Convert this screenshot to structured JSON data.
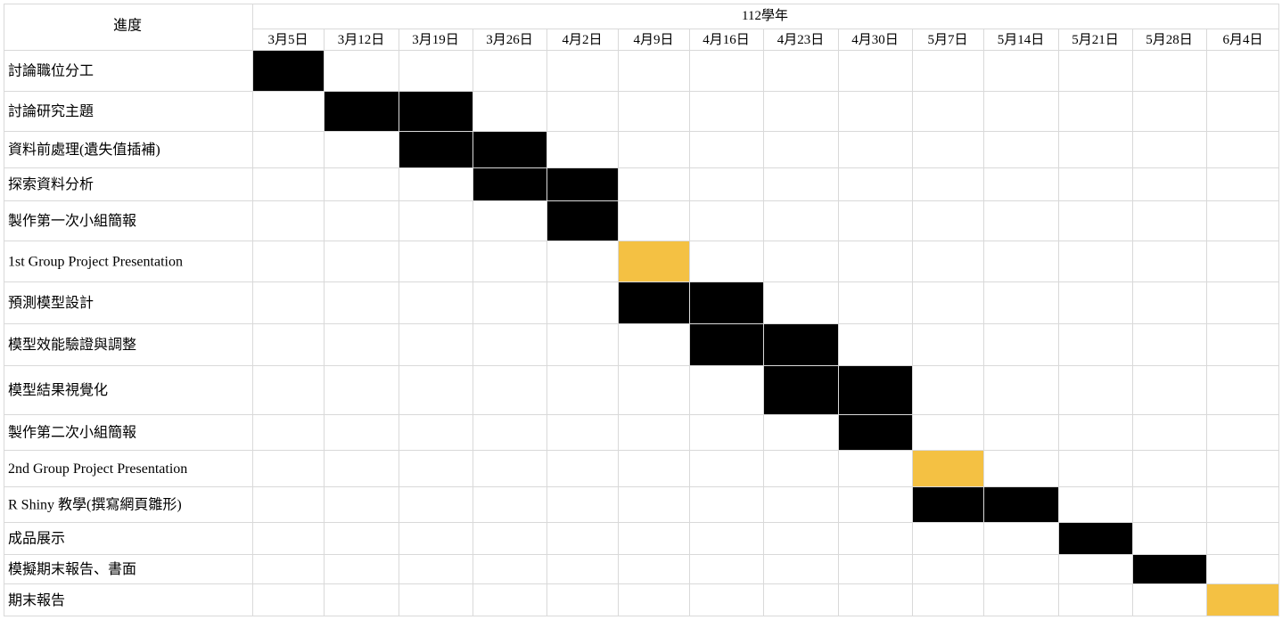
{
  "chart_data": {
    "type": "table",
    "corner_label": "進度",
    "year_label": "112學年",
    "weeks": [
      "3月5日",
      "3月12日",
      "3月19日",
      "3月26日",
      "4月2日",
      "4月9日",
      "4月16日",
      "4月23日",
      "4月30日",
      "5月7日",
      "5月14日",
      "5月21日",
      "5月28日",
      "6月4日"
    ],
    "tasks": [
      {
        "name": "討論職位分工",
        "start": 0,
        "end": 0,
        "kind": "work"
      },
      {
        "name": "討論研究主題",
        "start": 1,
        "end": 2,
        "kind": "work"
      },
      {
        "name": "資料前處理(遺失值插補)",
        "start": 2,
        "end": 3,
        "kind": "work"
      },
      {
        "name": "探索資料分析",
        "start": 3,
        "end": 4,
        "kind": "work"
      },
      {
        "name": "製作第一次小組簡報",
        "start": 4,
        "end": 4,
        "kind": "work"
      },
      {
        "name": "1st Group Project Presentation",
        "start": 5,
        "end": 5,
        "kind": "milestone"
      },
      {
        "name": "預測模型設計",
        "start": 5,
        "end": 6,
        "kind": "work"
      },
      {
        "name": "模型效能驗證與調整",
        "start": 6,
        "end": 7,
        "kind": "work"
      },
      {
        "name": "模型結果視覺化",
        "start": 7,
        "end": 8,
        "kind": "work"
      },
      {
        "name": "製作第二次小組簡報",
        "start": 8,
        "end": 8,
        "kind": "work"
      },
      {
        "name": "2nd Group Project Presentation",
        "start": 9,
        "end": 9,
        "kind": "milestone"
      },
      {
        "name": "R Shiny 教學(撰寫網頁雛形)",
        "start": 9,
        "end": 10,
        "kind": "work"
      },
      {
        "name": "成品展示",
        "start": 11,
        "end": 11,
        "kind": "work"
      },
      {
        "name": "模擬期末報告、書面",
        "start": 12,
        "end": 12,
        "kind": "work"
      },
      {
        "name": "期末報告",
        "start": 13,
        "end": 13,
        "kind": "milestone"
      }
    ],
    "colors": {
      "work": "#000000",
      "milestone": "#F4C143",
      "grid": "#D9D9D9"
    }
  }
}
